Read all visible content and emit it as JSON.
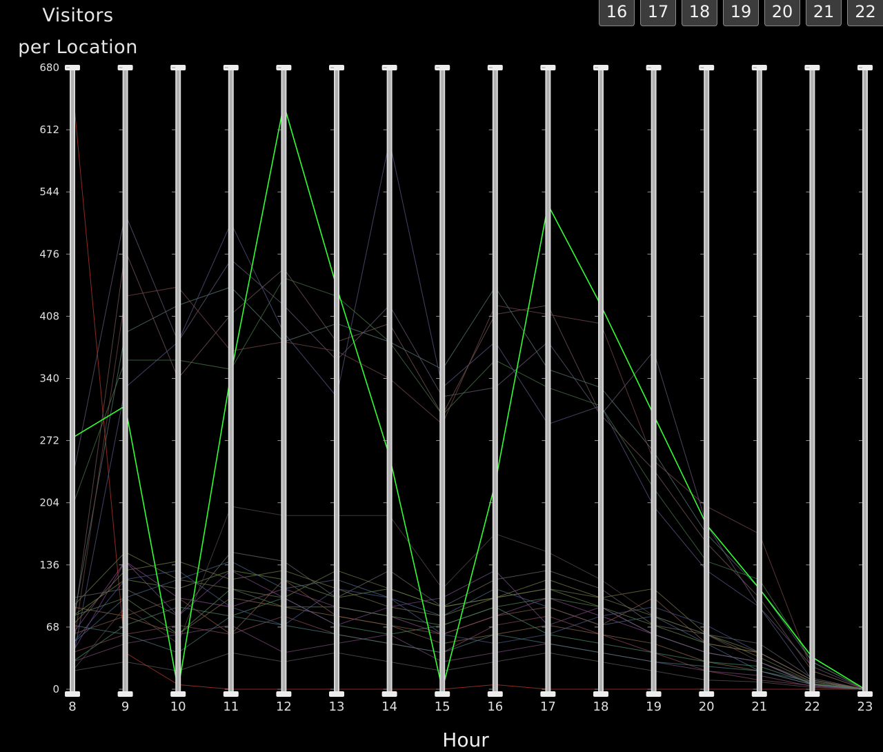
{
  "header": {
    "title_line1": "Visitors",
    "title_line2": "per Location",
    "hour_buttons": [
      "16",
      "17",
      "18",
      "19",
      "20",
      "21",
      "22"
    ]
  },
  "chart_data": {
    "type": "line",
    "chart_style": "parallel-coordinates",
    "xlabel": "Hour",
    "x": [
      8,
      9,
      10,
      11,
      12,
      13,
      14,
      15,
      16,
      17,
      18,
      19,
      20,
      21,
      22,
      23
    ],
    "ylim": [
      0,
      680
    ],
    "yticks": [
      0,
      68,
      136,
      204,
      272,
      340,
      408,
      476,
      544,
      612,
      680
    ],
    "grid": false,
    "highlight_color": "#33ff33",
    "series": [
      {
        "values": [
          275,
          310,
          0,
          345,
          640,
          440,
          255,
          0,
          225,
          530,
          420,
          300,
          180,
          110,
          35,
          0
        ],
        "color": "#33ff33",
        "highlight": true
      },
      {
        "values": [
          660,
          40,
          5,
          0,
          0,
          0,
          0,
          0,
          5,
          0,
          0,
          0,
          0,
          0,
          0,
          0
        ],
        "color": "#c0392b"
      },
      {
        "values": [
          60,
          480,
          340,
          410,
          460,
          380,
          400,
          300,
          410,
          420,
          300,
          240,
          160,
          100,
          20,
          0
        ],
        "color": "#7a5a5a"
      },
      {
        "values": [
          70,
          390,
          420,
          440,
          380,
          400,
          380,
          350,
          440,
          350,
          330,
          260,
          170,
          110,
          30,
          0
        ],
        "color": "#5a7a7a"
      },
      {
        "values": [
          230,
          520,
          380,
          470,
          420,
          360,
          420,
          320,
          330,
          380,
          300,
          370,
          180,
          90,
          25,
          0
        ],
        "color": "#6a5a7a"
      },
      {
        "values": [
          200,
          360,
          360,
          350,
          450,
          430,
          380,
          300,
          360,
          330,
          310,
          220,
          140,
          120,
          30,
          0
        ],
        "color": "#4a7a4a"
      },
      {
        "values": [
          40,
          430,
          440,
          370,
          380,
          370,
          340,
          290,
          420,
          410,
          400,
          250,
          200,
          170,
          20,
          0
        ],
        "color": "#7a4a4a"
      },
      {
        "values": [
          30,
          330,
          380,
          510,
          390,
          320,
          600,
          330,
          380,
          290,
          310,
          200,
          130,
          90,
          10,
          0
        ],
        "color": "#5a5a8a"
      },
      {
        "values": [
          80,
          120,
          110,
          130,
          120,
          100,
          110,
          90,
          100,
          110,
          90,
          70,
          50,
          40,
          10,
          0
        ],
        "color": "#6a8a4a"
      },
      {
        "values": [
          60,
          140,
          100,
          90,
          110,
          90,
          80,
          60,
          80,
          100,
          80,
          60,
          40,
          30,
          5,
          0
        ],
        "color": "#8a4a8a"
      },
      {
        "values": [
          50,
          100,
          120,
          140,
          110,
          120,
          100,
          80,
          110,
          90,
          70,
          80,
          50,
          20,
          8,
          0
        ],
        "color": "#4a6a8a"
      },
      {
        "values": [
          90,
          80,
          60,
          100,
          90,
          80,
          70,
          50,
          60,
          70,
          60,
          50,
          30,
          20,
          5,
          0
        ],
        "color": "#8a6a4a"
      },
      {
        "values": [
          30,
          70,
          90,
          80,
          100,
          70,
          60,
          70,
          90,
          60,
          50,
          40,
          30,
          25,
          6,
          0
        ],
        "color": "#4a8a6a"
      },
      {
        "values": [
          70,
          130,
          140,
          120,
          130,
          110,
          90,
          80,
          100,
          120,
          100,
          110,
          60,
          40,
          10,
          0
        ],
        "color": "#7a7a4a"
      },
      {
        "values": [
          40,
          60,
          70,
          60,
          80,
          60,
          50,
          40,
          70,
          80,
          60,
          40,
          20,
          10,
          4,
          0
        ],
        "color": "#8a4a5a"
      },
      {
        "values": [
          20,
          90,
          50,
          200,
          190,
          190,
          190,
          110,
          170,
          150,
          120,
          80,
          60,
          30,
          8,
          0
        ],
        "color": "#5a4a4a"
      },
      {
        "values": [
          100,
          110,
          80,
          150,
          140,
          100,
          130,
          90,
          120,
          130,
          110,
          70,
          60,
          50,
          12,
          0
        ],
        "color": "#6a6a6a"
      },
      {
        "values": [
          50,
          120,
          130,
          90,
          70,
          110,
          100,
          60,
          50,
          60,
          80,
          90,
          70,
          40,
          10,
          0
        ],
        "color": "#4a5a8a"
      },
      {
        "values": [
          30,
          50,
          60,
          70,
          40,
          50,
          60,
          30,
          40,
          50,
          40,
          30,
          20,
          15,
          3,
          0
        ],
        "color": "#7a4a7a"
      },
      {
        "values": [
          80,
          100,
          60,
          110,
          90,
          90,
          80,
          70,
          90,
          100,
          90,
          60,
          40,
          30,
          6,
          0
        ],
        "color": "#5a8a5a"
      },
      {
        "values": [
          60,
          80,
          100,
          60,
          120,
          80,
          70,
          60,
          80,
          90,
          70,
          100,
          50,
          40,
          10,
          0
        ],
        "color": "#8a5a4a"
      },
      {
        "values": [
          20,
          30,
          20,
          40,
          30,
          40,
          30,
          20,
          30,
          40,
          30,
          20,
          10,
          8,
          2,
          0
        ],
        "color": "#5a5a5a"
      },
      {
        "values": [
          90,
          150,
          120,
          110,
          100,
          130,
          110,
          90,
          100,
          110,
          100,
          80,
          60,
          35,
          8,
          0
        ],
        "color": "#6a7a4a"
      },
      {
        "values": [
          40,
          140,
          80,
          130,
          100,
          70,
          90,
          100,
          130,
          70,
          90,
          60,
          40,
          30,
          5,
          0
        ],
        "color": "#7a4a8a"
      },
      {
        "values": [
          70,
          60,
          40,
          80,
          70,
          60,
          50,
          40,
          60,
          50,
          40,
          30,
          25,
          20,
          5,
          0
        ],
        "color": "#4a7a7a"
      }
    ]
  }
}
